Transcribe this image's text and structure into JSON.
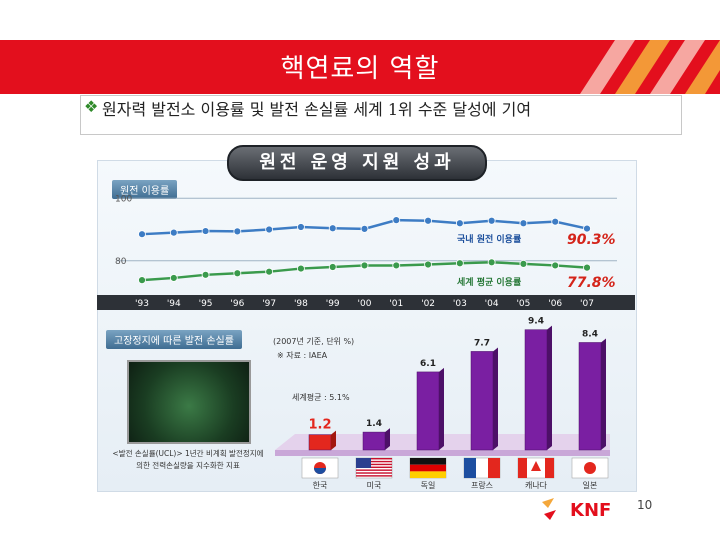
{
  "header": {
    "title": "핵연료의 역할"
  },
  "bullet": {
    "icon": "checkmark-diamond-icon",
    "text": "원자력 발전소 이용률 및 발전 손실률 세계 1위 수준 달성에 기여"
  },
  "dashboard": {
    "banner": "원전 운영 지원 성과",
    "line_tag": "원전 이용률",
    "bar_tag": "고장정지에 따른 발전 손실률",
    "bar_note": "(2007년 기준, 단위 %)",
    "bar_source": "※ 자료 : IAEA",
    "world_avg": "세계평균 : 5.1%",
    "caption": "<발전 손실률(UCL)> 1년간 비계획 발전정지에 의한 전력손실량을 지수화한 지표"
  },
  "chart_data": [
    {
      "type": "line",
      "title": "원전 이용률",
      "x": [
        "'93",
        "'94",
        "'95",
        "'96",
        "'97",
        "'98",
        "'99",
        "'00",
        "'01",
        "'02",
        "'03",
        "'04",
        "'05",
        "'06",
        "'07"
      ],
      "ylim": [
        70,
        102
      ],
      "yticks": [
        "100",
        "80"
      ],
      "series": [
        {
          "name": "국내 원전 이용률",
          "label": "90.3%",
          "color": "#3d7cc4",
          "values": [
            88.5,
            89.0,
            89.5,
            89.4,
            90.0,
            90.8,
            90.4,
            90.2,
            93.0,
            92.8,
            92.0,
            92.8,
            92.0,
            92.5,
            90.3
          ]
        },
        {
          "name": "세계 평균 이용률",
          "label": "77.8%",
          "color": "#3a9a4c",
          "values": [
            73.8,
            74.5,
            75.5,
            76.0,
            76.5,
            77.5,
            78.0,
            78.5,
            78.5,
            78.8,
            79.2,
            79.5,
            79.0,
            78.5,
            77.8
          ]
        }
      ]
    },
    {
      "type": "bar",
      "title": "고장정지에 따른 발전 손실률",
      "categories": [
        "한국",
        "미국",
        "독일",
        "프랑스",
        "캐나다",
        "일본"
      ],
      "values": [
        1.2,
        1.4,
        6.1,
        7.7,
        9.4,
        8.4
      ],
      "labels": [
        "1.2",
        "1.4",
        "6.1",
        "7.7",
        "9.4",
        "8.4"
      ],
      "ylim": [
        0,
        10
      ],
      "world_average": 5.1
    }
  ],
  "footer": {
    "page": "10",
    "logo": "KNF"
  }
}
